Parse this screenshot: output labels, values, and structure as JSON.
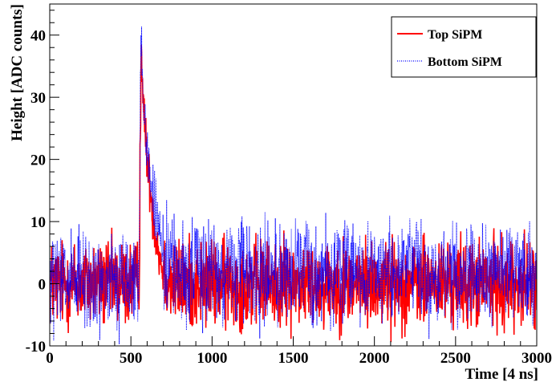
{
  "chart_data": {
    "type": "line",
    "title": "",
    "xlabel": "Time [4 ns]",
    "ylabel": "Height [ADC counts]",
    "xlim": [
      0,
      3000
    ],
    "ylim": [
      -10,
      45
    ],
    "x_ticks": [
      0,
      500,
      1000,
      1500,
      2000,
      2500,
      3000
    ],
    "y_ticks": [
      -10,
      0,
      10,
      20,
      30,
      40
    ],
    "grid": false,
    "legend_position": "top-right",
    "series": [
      {
        "name": "Top SiPM",
        "color": "#ff0000",
        "style": "solid",
        "x": [
          0,
          100,
          200,
          300,
          400,
          500,
          550,
          560,
          565,
          570,
          575,
          580,
          590,
          600,
          620,
          640,
          660,
          680,
          700,
          750,
          800,
          900,
          1000,
          1200,
          1500,
          1800,
          2000,
          2200,
          2500,
          2800,
          3000
        ],
        "y": [
          0,
          0,
          0,
          0,
          0,
          0,
          0,
          30,
          38,
          35,
          30,
          26,
          24,
          20,
          15,
          10,
          7,
          4,
          2,
          0,
          0,
          0,
          0,
          0,
          0,
          0,
          0,
          0,
          0,
          0,
          0
        ],
        "noise_amplitude": 3.5
      },
      {
        "name": "Bottom SiPM",
        "color": "#0000ff",
        "style": "dotted",
        "x": [
          0,
          100,
          200,
          300,
          400,
          500,
          550,
          560,
          565,
          570,
          575,
          580,
          590,
          600,
          620,
          640,
          660,
          680,
          700,
          750,
          800,
          900,
          1000,
          1200,
          1500,
          1800,
          2000,
          2200,
          2500,
          2800,
          3000
        ],
        "y": [
          0,
          0,
          0,
          0,
          0,
          0,
          1,
          32,
          42,
          36,
          31,
          27,
          25,
          22,
          17,
          13,
          10,
          7,
          5,
          3,
          2,
          2,
          2,
          2,
          2,
          2,
          2,
          2,
          2,
          2,
          2
        ],
        "noise_amplitude": 4
      }
    ]
  }
}
